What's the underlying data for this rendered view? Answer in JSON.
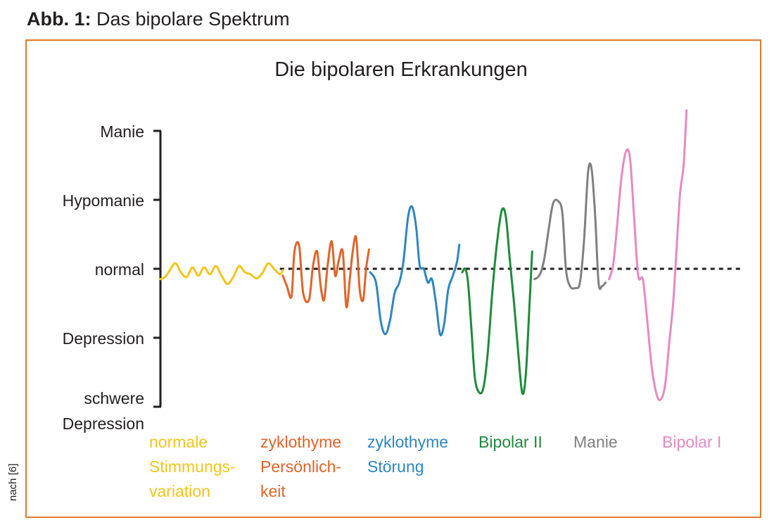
{
  "figure": {
    "label": "Abb. 1:",
    "title": "Das bipolare Spektrum"
  },
  "source_note": "nach [6]",
  "colors": {
    "frame": "#e07a2e",
    "normale_stimmungsvariation": "#f2c51c",
    "zyklothyme_persoenlichkeit": "#e0642a",
    "zyklothyme_stoerung": "#2e86c1",
    "bipolar_ii": "#1e8a3a",
    "manie": "#808080",
    "bipolar_i": "#e58ac0"
  },
  "chart_data": {
    "type": "line",
    "title": "Die bipolaren Erkrankungen",
    "y_levels": [
      {
        "value": 2,
        "label": "Manie"
      },
      {
        "value": 1,
        "label": "Hypomanie"
      },
      {
        "value": 0,
        "label": "normal"
      },
      {
        "value": -1,
        "label": "Depression"
      },
      {
        "value": -2,
        "label": "schwere Depression"
      }
    ],
    "ylim": [
      -2.3,
      2.5
    ],
    "xlim": [
      0,
      100
    ],
    "baseline": 0,
    "series": [
      {
        "name": "normale Stimmungsvariation",
        "color": "#f2c51c",
        "points": [
          [
            0,
            -0.15
          ],
          [
            1,
            -0.1
          ],
          [
            2.5,
            0.08
          ],
          [
            3.5,
            -0.05
          ],
          [
            4.5,
            -0.12
          ],
          [
            5.5,
            0.02
          ],
          [
            6.5,
            -0.1
          ],
          [
            7.5,
            0.02
          ],
          [
            8.5,
            -0.08
          ],
          [
            9.5,
            0.04
          ],
          [
            10.5,
            -0.1
          ],
          [
            11.5,
            -0.22
          ],
          [
            12.5,
            -0.12
          ],
          [
            13.5,
            0.04
          ],
          [
            14.5,
            -0.05
          ],
          [
            15.5,
            -0.08
          ],
          [
            16.5,
            -0.14
          ],
          [
            17.5,
            -0.06
          ],
          [
            18.5,
            0.08
          ],
          [
            19.5,
            0.0
          ],
          [
            20.5,
            -0.08
          ],
          [
            21,
            -0.02
          ]
        ]
      },
      {
        "name": "zyklothyme Persönlichkeit",
        "color": "#e0642a",
        "lines": [
          "zyklothyme",
          "Persönlich-",
          "keit"
        ],
        "points": [
          [
            21,
            -0.1
          ],
          [
            21.7,
            -0.25
          ],
          [
            22.5,
            -0.4
          ],
          [
            23,
            0.25
          ],
          [
            23.8,
            0.34
          ],
          [
            24.5,
            -0.35
          ],
          [
            25.5,
            -0.45
          ],
          [
            26.2,
            0.05
          ],
          [
            26.9,
            0.25
          ],
          [
            27.5,
            -0.25
          ],
          [
            28.1,
            -0.45
          ],
          [
            28.7,
            0.05
          ],
          [
            29.4,
            0.4
          ],
          [
            30,
            -0.1
          ],
          [
            30.6,
            0.12
          ],
          [
            31.3,
            0.25
          ],
          [
            31.9,
            -0.55
          ],
          [
            32.5,
            -0.15
          ],
          [
            33,
            0.25
          ],
          [
            33.6,
            0.45
          ],
          [
            34.2,
            -0.3
          ],
          [
            34.8,
            -0.45
          ],
          [
            35.3,
            0.0
          ],
          [
            35.8,
            0.28
          ]
        ]
      },
      {
        "name": "zyklothyme Störung",
        "color": "#2e86c1",
        "lines": [
          "zyklothyme",
          "Störung"
        ],
        "points": [
          [
            36,
            -0.05
          ],
          [
            37,
            -0.2
          ],
          [
            37.8,
            -0.75
          ],
          [
            38.6,
            -0.95
          ],
          [
            39.4,
            -0.75
          ],
          [
            40.2,
            -0.35
          ],
          [
            41,
            -0.2
          ],
          [
            41.7,
            0.1
          ],
          [
            42.5,
            0.75
          ],
          [
            43.2,
            0.9
          ],
          [
            43.9,
            0.6
          ],
          [
            44.5,
            0.05
          ],
          [
            45.2,
            0.0
          ],
          [
            45.9,
            -0.2
          ],
          [
            46.6,
            -0.15
          ],
          [
            47.3,
            -0.5
          ],
          [
            48,
            -0.95
          ],
          [
            48.7,
            -0.8
          ],
          [
            49.4,
            -0.3
          ],
          [
            50.2,
            -0.1
          ],
          [
            50.9,
            0.1
          ],
          [
            51.3,
            0.35
          ]
        ]
      },
      {
        "name": "Bipolar II",
        "color": "#1e8a3a",
        "points": [
          [
            51.8,
            -0.05
          ],
          [
            52.3,
            0.0
          ],
          [
            52.8,
            -0.2
          ],
          [
            53.4,
            -0.9
          ],
          [
            54,
            -1.6
          ],
          [
            54.8,
            -1.8
          ],
          [
            55.5,
            -1.7
          ],
          [
            56.2,
            -1.2
          ],
          [
            57,
            -0.3
          ],
          [
            57.8,
            0.4
          ],
          [
            58.6,
            0.85
          ],
          [
            59.3,
            0.75
          ],
          [
            60,
            0.1
          ],
          [
            60.7,
            -0.5
          ],
          [
            61.4,
            -1.2
          ],
          [
            62.1,
            -1.8
          ],
          [
            62.7,
            -1.55
          ],
          [
            63.3,
            -0.6
          ],
          [
            63.8,
            0.25
          ]
        ]
      },
      {
        "name": "Manie",
        "color": "#808080",
        "points": [
          [
            64.2,
            -0.15
          ],
          [
            64.8,
            -0.12
          ],
          [
            65.3,
            -0.05
          ],
          [
            65.9,
            0.15
          ],
          [
            66.6,
            0.55
          ],
          [
            67.4,
            0.95
          ],
          [
            68.3,
            0.98
          ],
          [
            69,
            0.8
          ],
          [
            69.6,
            0.0
          ],
          [
            70.3,
            -0.25
          ],
          [
            71.2,
            -0.28
          ],
          [
            72,
            -0.2
          ],
          [
            72.7,
            0.4
          ],
          [
            73.4,
            1.4
          ],
          [
            74,
            1.45
          ],
          [
            74.6,
            0.8
          ],
          [
            75.2,
            -0.2
          ],
          [
            75.8,
            -0.25
          ],
          [
            76.4,
            -0.2
          ]
        ]
      },
      {
        "name": "Bipolar I",
        "color": "#e58ac0",
        "points": [
          [
            77,
            -0.15
          ],
          [
            77.7,
            0.05
          ],
          [
            78.3,
            0.55
          ],
          [
            79.1,
            1.3
          ],
          [
            79.9,
            1.7
          ],
          [
            80.6,
            1.6
          ],
          [
            81.3,
            0.75
          ],
          [
            82,
            -0.1
          ],
          [
            82.8,
            -0.15
          ],
          [
            83.5,
            -0.7
          ],
          [
            84.3,
            -1.4
          ],
          [
            85.1,
            -1.8
          ],
          [
            85.8,
            -1.9
          ],
          [
            86.6,
            -1.7
          ],
          [
            87.3,
            -1.1
          ],
          [
            88,
            -0.5
          ],
          [
            88.6,
            0.3
          ],
          [
            89.2,
            1.1
          ],
          [
            89.8,
            1.5
          ],
          [
            90.3,
            2.3
          ]
        ]
      }
    ],
    "legend_lines": [
      [
        "normale",
        "Stimmungs-",
        "variation"
      ],
      [
        "zyklothyme",
        "Persönlich-",
        "keit"
      ],
      [
        "zyklothyme",
        "Störung"
      ],
      [
        "Bipolar II"
      ],
      [
        "Manie"
      ],
      [
        "Bipolar I"
      ]
    ]
  }
}
